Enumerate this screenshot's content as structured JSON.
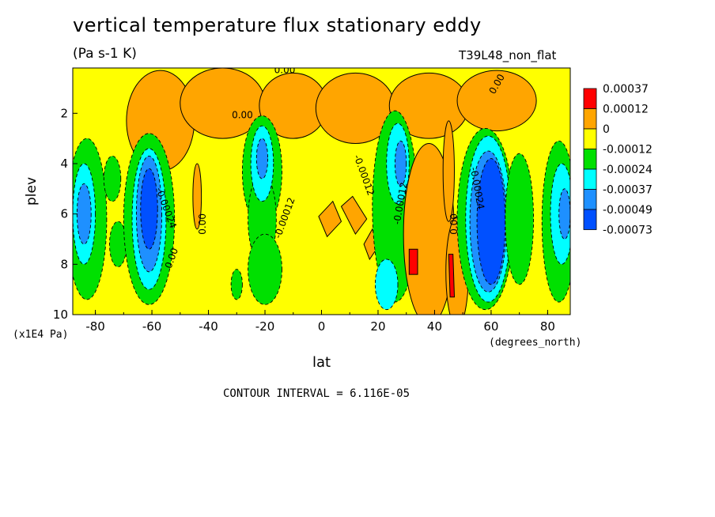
{
  "chart_data": {
    "type": "heatmap",
    "title": "vertical temperature flux stationary eddy",
    "subtitle": "(Pa s-1 K)",
    "dataset_label": "T39L48_non_flat",
    "xlabel": "lat",
    "ylabel": "plev",
    "x_units": "(degrees_north)",
    "y_units": "(x1E4 Pa)",
    "x_ticks": [
      -80,
      -60,
      -40,
      -20,
      0,
      20,
      40,
      60,
      80
    ],
    "y_ticks": [
      2,
      4,
      6,
      8,
      10
    ],
    "xlim": [
      -88,
      88
    ],
    "ylim": [
      10,
      0.2
    ],
    "contour_interval_text": "CONTOUR INTERVAL = 6.116E-05",
    "contour_labels": [
      "0.00",
      "0.00",
      "0.00",
      "-0.00024",
      "-0.00012",
      "0.00",
      "-0.00012",
      "-0.00012",
      "0.00",
      "0.00",
      "-0.00024"
    ],
    "legend": {
      "labels": [
        "0.00037",
        "0.00012",
        "0",
        "-0.00012",
        "-0.00024",
        "-0.00037",
        "-0.00049",
        "-0.00073"
      ],
      "colors": [
        "#ff0000",
        "#ffa500",
        "#ffff00",
        "#00e000",
        "#00ffff",
        "#1e90ff",
        "#0050ff"
      ]
    },
    "regions": [
      {
        "kind": "ellipse",
        "lat": -57,
        "plev": 2.3,
        "dlat": 12,
        "dplev": 2.0,
        "level": 1
      },
      {
        "kind": "ellipse",
        "lat": -35,
        "plev": 1.6,
        "dlat": 15,
        "dplev": 1.4,
        "level": 1
      },
      {
        "kind": "ellipse",
        "lat": -10,
        "plev": 1.7,
        "dlat": 12,
        "dplev": 1.3,
        "level": 1
      },
      {
        "kind": "ellipse",
        "lat": 12,
        "plev": 1.8,
        "dlat": 14,
        "dplev": 1.4,
        "level": 1
      },
      {
        "kind": "ellipse",
        "lat": 38,
        "plev": 1.7,
        "dlat": 14,
        "dplev": 1.3,
        "level": 1
      },
      {
        "kind": "ellipse",
        "lat": 62,
        "plev": 1.5,
        "dlat": 14,
        "dplev": 1.2,
        "level": 1
      },
      {
        "kind": "ellipse",
        "lat": -83,
        "plev": 6.2,
        "dlat": 7,
        "dplev": 3.2,
        "level": 3
      },
      {
        "kind": "ellipse",
        "lat": -84,
        "plev": 6.0,
        "dlat": 4,
        "dplev": 2.0,
        "level": 4
      },
      {
        "kind": "ellipse",
        "lat": -84,
        "plev": 6.0,
        "dlat": 2.5,
        "dplev": 1.2,
        "level": 5
      },
      {
        "kind": "ellipse",
        "lat": -74,
        "plev": 4.6,
        "dlat": 3,
        "dplev": 0.9,
        "level": 3
      },
      {
        "kind": "ellipse",
        "lat": -72,
        "plev": 7.2,
        "dlat": 3,
        "dplev": 0.9,
        "level": 3
      },
      {
        "kind": "ellipse",
        "lat": -61,
        "plev": 6.2,
        "dlat": 9,
        "dplev": 3.4,
        "level": 3
      },
      {
        "kind": "ellipse",
        "lat": -61,
        "plev": 6.2,
        "dlat": 6,
        "dplev": 2.8,
        "level": 4
      },
      {
        "kind": "ellipse",
        "lat": -61,
        "plev": 6.0,
        "dlat": 4.5,
        "dplev": 2.3,
        "level": 5
      },
      {
        "kind": "ellipse",
        "lat": -61,
        "plev": 5.8,
        "dlat": 3,
        "dplev": 1.6,
        "level": 6
      },
      {
        "kind": "ellipse",
        "lat": -44,
        "plev": 5.3,
        "dlat": 1.5,
        "dplev": 1.3,
        "level": 1
      },
      {
        "kind": "ellipse",
        "lat": -21,
        "plev": 4.3,
        "dlat": 7,
        "dplev": 2.2,
        "level": 3
      },
      {
        "kind": "ellipse",
        "lat": -21,
        "plev": 6.2,
        "dlat": 5,
        "dplev": 1.8,
        "level": 3
      },
      {
        "kind": "ellipse",
        "lat": -20,
        "plev": 8.2,
        "dlat": 6,
        "dplev": 1.4,
        "level": 3
      },
      {
        "kind": "ellipse",
        "lat": -21,
        "plev": 4.0,
        "dlat": 4,
        "dplev": 1.5,
        "level": 4
      },
      {
        "kind": "ellipse",
        "lat": -21,
        "plev": 3.8,
        "dlat": 2,
        "dplev": 0.8,
        "level": 5
      },
      {
        "kind": "ellipse",
        "lat": -30,
        "plev": 8.8,
        "dlat": 2,
        "dplev": 0.6,
        "level": 3
      },
      {
        "kind": "poly",
        "points": [
          [
            -1,
            6.1
          ],
          [
            4,
            5.5
          ],
          [
            7,
            6.3
          ],
          [
            2,
            6.9
          ]
        ],
        "level": 1
      },
      {
        "kind": "poly",
        "points": [
          [
            7,
            5.7
          ],
          [
            11,
            5.3
          ],
          [
            16,
            6.2
          ],
          [
            12,
            6.8
          ]
        ],
        "level": 1
      },
      {
        "kind": "poly",
        "points": [
          [
            15,
            7.2
          ],
          [
            18,
            6.6
          ],
          [
            20,
            7.3
          ],
          [
            17,
            7.8
          ]
        ],
        "level": 1
      },
      {
        "kind": "ellipse",
        "lat": 26,
        "plev": 5.7,
        "dlat": 8,
        "dplev": 3.8,
        "level": 3
      },
      {
        "kind": "ellipse",
        "lat": 27,
        "plev": 4.0,
        "dlat": 4,
        "dplev": 1.6,
        "level": 4
      },
      {
        "kind": "ellipse",
        "lat": 28,
        "plev": 4.0,
        "dlat": 2,
        "dplev": 0.9,
        "level": 5
      },
      {
        "kind": "ellipse",
        "lat": 23,
        "plev": 8.8,
        "dlat": 4,
        "dplev": 1.0,
        "level": 4
      },
      {
        "kind": "ellipse",
        "lat": 38,
        "plev": 6.8,
        "dlat": 9,
        "dplev": 3.6,
        "level": 1
      },
      {
        "kind": "ellipse",
        "lat": 45,
        "plev": 4.3,
        "dlat": 2,
        "dplev": 2.0,
        "level": 1
      },
      {
        "kind": "ellipse",
        "lat": 48,
        "plev": 8.3,
        "dlat": 4,
        "dplev": 2.2,
        "level": 1
      },
      {
        "kind": "poly",
        "points": [
          [
            31,
            7.4
          ],
          [
            34,
            7.4
          ],
          [
            34,
            8.4
          ],
          [
            31,
            8.4
          ]
        ],
        "level": 0
      },
      {
        "kind": "poly",
        "points": [
          [
            45,
            7.6
          ],
          [
            46.5,
            7.6
          ],
          [
            47,
            9.3
          ],
          [
            45.5,
            9.3
          ]
        ],
        "level": 0
      },
      {
        "kind": "ellipse",
        "lat": 58,
        "plev": 6.2,
        "dlat": 10,
        "dplev": 3.6,
        "level": 3
      },
      {
        "kind": "ellipse",
        "lat": 59,
        "plev": 6.2,
        "dlat": 8,
        "dplev": 3.3,
        "level": 4
      },
      {
        "kind": "ellipse",
        "lat": 59,
        "plev": 6.3,
        "dlat": 6.5,
        "dplev": 2.8,
        "level": 5
      },
      {
        "kind": "ellipse",
        "lat": 60,
        "plev": 6.3,
        "dlat": 5,
        "dplev": 2.5,
        "level": 6
      },
      {
        "kind": "ellipse",
        "lat": 70,
        "plev": 6.2,
        "dlat": 5,
        "dplev": 2.6,
        "level": 3
      },
      {
        "kind": "ellipse",
        "lat": 84,
        "plev": 6.3,
        "dlat": 6,
        "dplev": 3.2,
        "level": 3
      },
      {
        "kind": "ellipse",
        "lat": 85,
        "plev": 6.0,
        "dlat": 4,
        "dplev": 2.0,
        "level": 4
      },
      {
        "kind": "ellipse",
        "lat": 86,
        "plev": 6.0,
        "dlat": 2,
        "dplev": 1.0,
        "level": 5
      }
    ]
  }
}
